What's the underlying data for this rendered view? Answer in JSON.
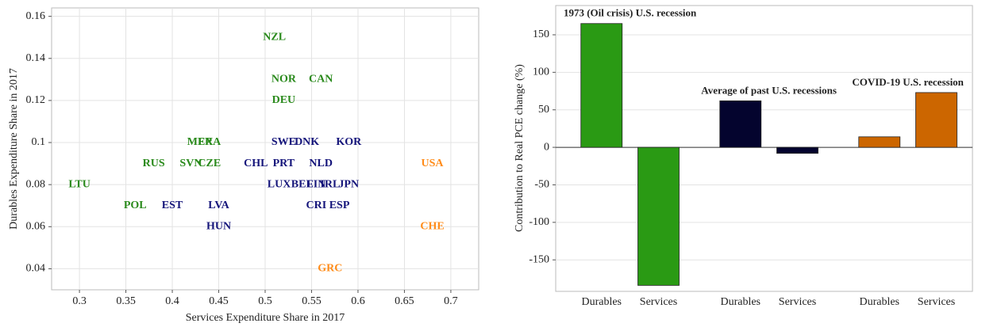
{
  "chart_data": [
    {
      "type": "scatter",
      "xlabel": "Services Expenditure Share in 2017",
      "ylabel": "Durables Expenditure Share in 2017",
      "labels": [
        "NZL",
        "NOR",
        "CAN",
        "DEU",
        "MEX",
        "FRA",
        "SWE",
        "DNK",
        "KOR",
        "RUS",
        "SVN",
        "CZE",
        "CHL",
        "PRT",
        "NLD",
        "USA",
        "LTU",
        "LUX",
        "BEL",
        "FIN",
        "IRL",
        "JPN",
        "POL",
        "EST",
        "LVA",
        "CRI",
        "ESP",
        "HUN",
        "CHE",
        "GRC"
      ],
      "x": [
        0.51,
        0.52,
        0.56,
        0.52,
        0.43,
        0.44,
        0.52,
        0.545,
        0.59,
        0.38,
        0.42,
        0.44,
        0.49,
        0.52,
        0.56,
        0.68,
        0.3,
        0.515,
        0.54,
        0.555,
        0.57,
        0.59,
        0.36,
        0.4,
        0.45,
        0.555,
        0.58,
        0.45,
        0.68,
        0.57
      ],
      "y": [
        0.15,
        0.13,
        0.13,
        0.12,
        0.1,
        0.1,
        0.1,
        0.1,
        0.1,
        0.09,
        0.09,
        0.09,
        0.09,
        0.09,
        0.09,
        0.09,
        0.08,
        0.08,
        0.08,
        0.08,
        0.08,
        0.08,
        0.07,
        0.07,
        0.07,
        0.07,
        0.07,
        0.06,
        0.06,
        0.04
      ],
      "colors": [
        "#2a8a1c",
        "#2a8a1c",
        "#2a8a1c",
        "#2a8a1c",
        "#2a8a1c",
        "#2a8a1c",
        "#14147a",
        "#14147a",
        "#14147a",
        "#2a8a1c",
        "#2a8a1c",
        "#2a8a1c",
        "#14147a",
        "#14147a",
        "#14147a",
        "#ff8c1a",
        "#2a8a1c",
        "#14147a",
        "#14147a",
        "#14147a",
        "#14147a",
        "#14147a",
        "#2a8a1c",
        "#14147a",
        "#14147a",
        "#14147a",
        "#14147a",
        "#14147a",
        "#ff8c1a",
        "#ff8c1a"
      ],
      "xlim": [
        0.27,
        0.73
      ],
      "xticks": [
        0.3,
        0.35,
        0.4,
        0.45,
        0.5,
        0.55,
        0.6,
        0.65,
        0.7
      ],
      "ylim": [
        0.03,
        0.164
      ],
      "yticks": [
        0.04,
        0.06,
        0.08,
        0.1,
        0.12,
        0.14,
        0.16
      ],
      "grid": true
    },
    {
      "type": "bar",
      "ylabel": "Contribution to Real PCE change (%)",
      "groups": [
        {
          "name": "1973 (Oil crisis) U.S. recession",
          "color": "#2a9a14",
          "categories": [
            "Durables",
            "Services"
          ],
          "values": [
            165,
            -184
          ]
        },
        {
          "name": "Average of past U.S. recessions",
          "color": "#04042e",
          "categories": [
            "Durables",
            "Services"
          ],
          "values": [
            62,
            -8
          ]
        },
        {
          "name": "COVID-19 U.S. recession",
          "color": "#cc6600",
          "categories": [
            "Durables",
            "Services"
          ],
          "values": [
            14,
            73
          ]
        }
      ],
      "ylim": [
        -192,
        189
      ],
      "yticks": [
        -150,
        -100,
        -50,
        0,
        50,
        100,
        150
      ],
      "grid": true
    }
  ]
}
